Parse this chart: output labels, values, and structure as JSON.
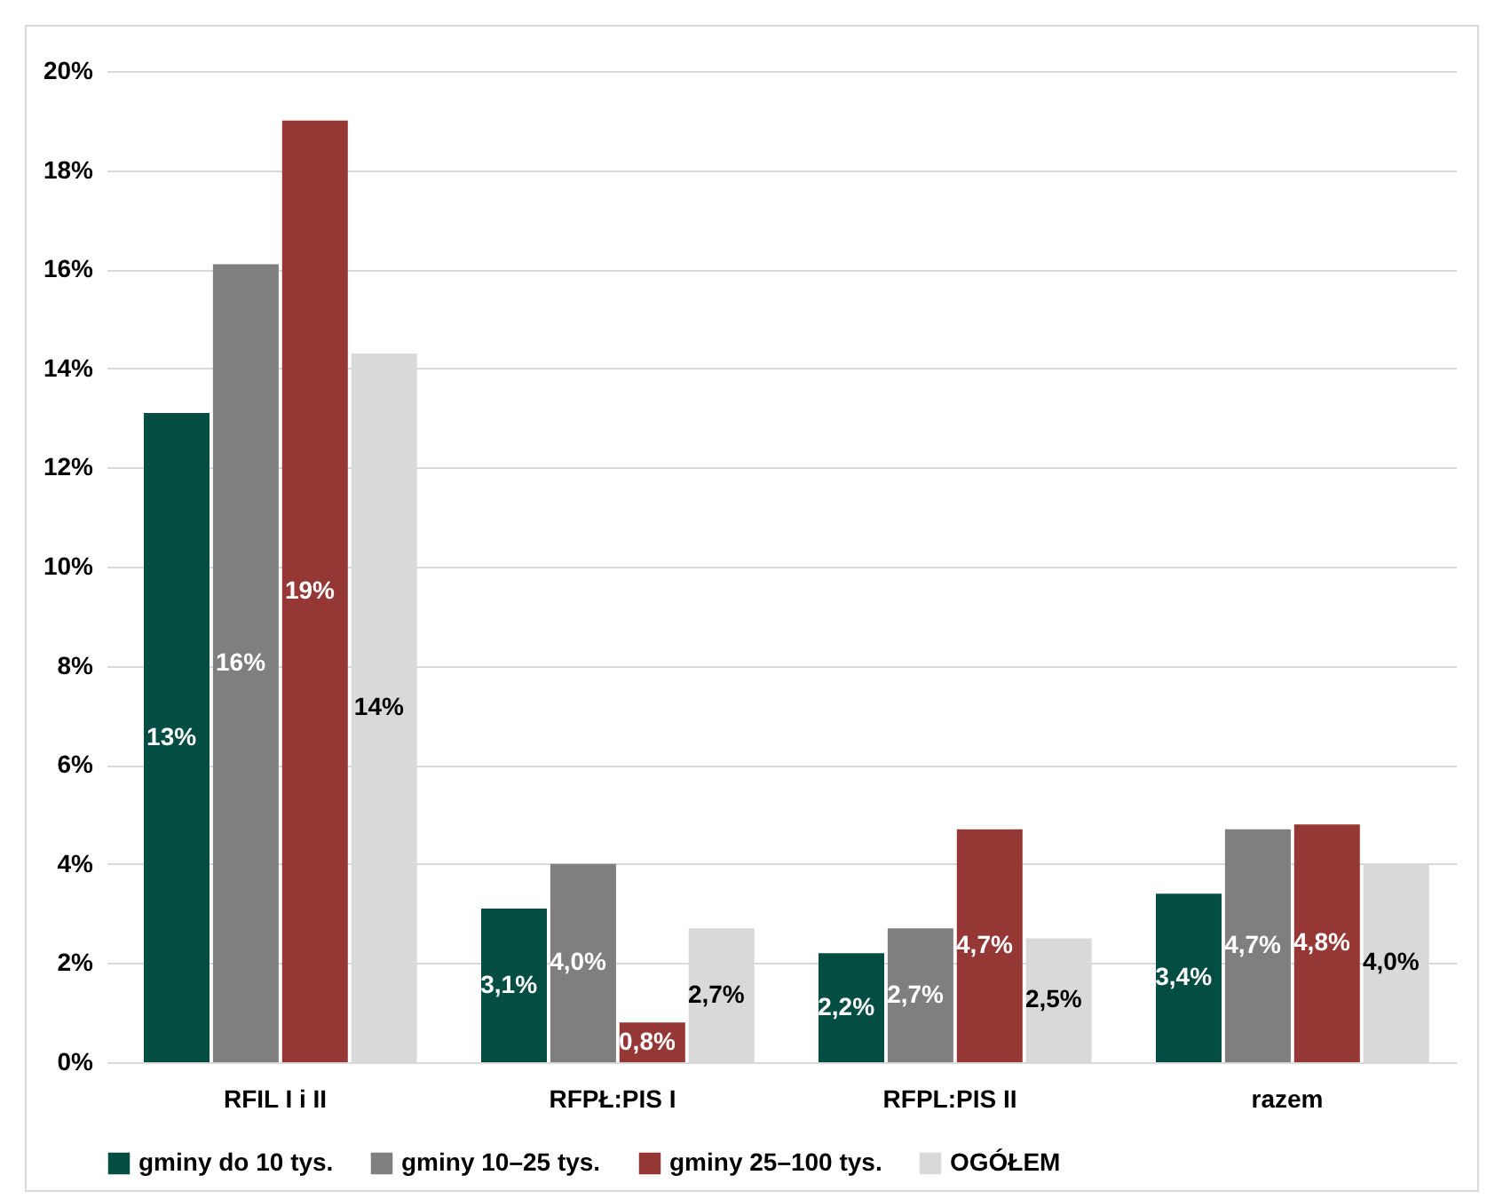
{
  "chart_data": {
    "type": "bar",
    "categories": [
      "RFIL I i II",
      "RFPŁ:PIS I",
      "RFPL:PIS II",
      "razem"
    ],
    "series": [
      {
        "name": "gminy do 10 tys.",
        "color": "#034d43",
        "values": [
          13.1,
          3.1,
          2.2,
          3.4
        ],
        "value_labels": [
          "13%",
          "3,1%",
          "2,2%",
          "3,4%"
        ]
      },
      {
        "name": "gminy 10–25 tys.",
        "color": "#7f7f7f",
        "values": [
          16.1,
          4.0,
          2.7,
          4.7
        ],
        "value_labels": [
          "16%",
          "4,0%",
          "2,7%",
          "4,7%"
        ]
      },
      {
        "name": "gminy 25–100 tys.",
        "color": "#953735",
        "values": [
          19.0,
          0.8,
          4.7,
          4.8
        ],
        "value_labels": [
          "19%",
          "0,8%",
          "4,7%",
          "4,8%"
        ]
      },
      {
        "name": "OGÓŁEM",
        "color": "#d9d9d9",
        "values": [
          14.3,
          2.7,
          2.5,
          4.0
        ],
        "value_labels": [
          "14%",
          "2,7%",
          "2,5%",
          "4,0%"
        ]
      }
    ],
    "ylim": [
      0,
      20
    ],
    "yticks": [
      {
        "value": 0,
        "label": "0%"
      },
      {
        "value": 2,
        "label": "2%"
      },
      {
        "value": 4,
        "label": "4%"
      },
      {
        "value": 6,
        "label": "6%"
      },
      {
        "value": 8,
        "label": "8%"
      },
      {
        "value": 10,
        "label": "10%"
      },
      {
        "value": 12,
        "label": "12%"
      },
      {
        "value": 14,
        "label": "14%"
      },
      {
        "value": 16,
        "label": "16%"
      },
      {
        "value": 18,
        "label": "18%"
      },
      {
        "value": 20,
        "label": "20%"
      }
    ],
    "grid": "y",
    "legend": "bottom"
  }
}
